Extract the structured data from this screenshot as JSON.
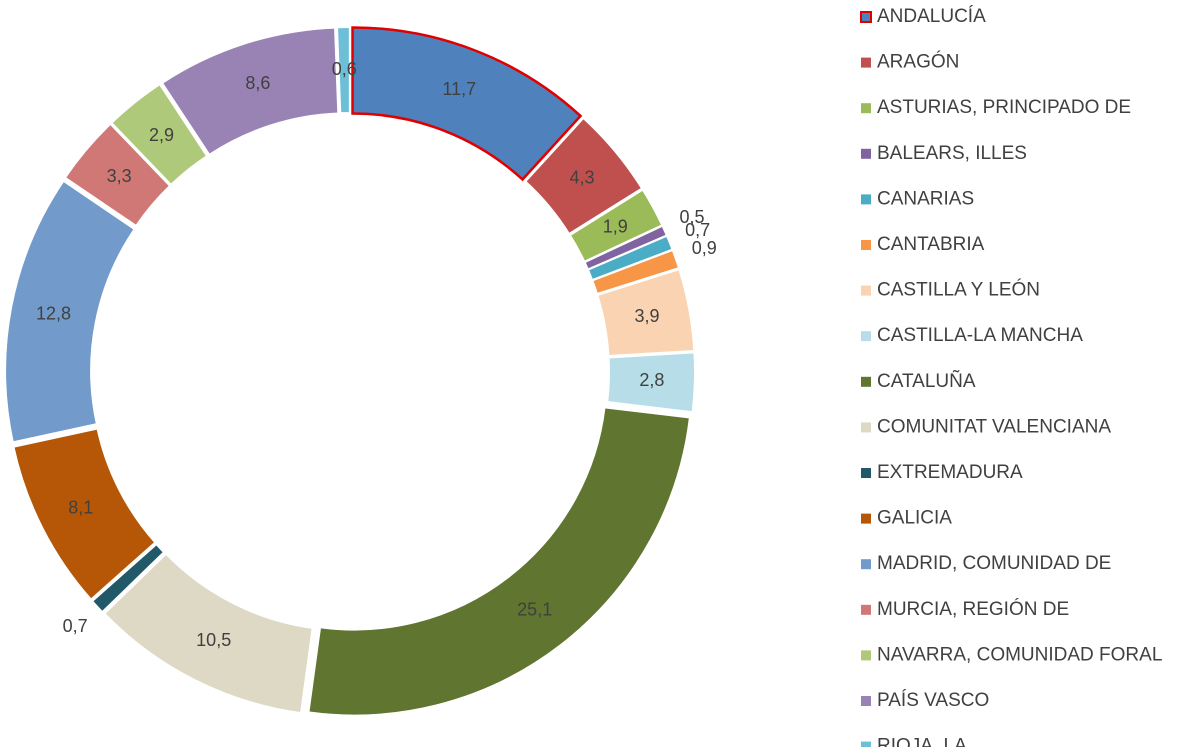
{
  "chart_data": {
    "type": "pie",
    "donut": true,
    "categories": [
      "ANDALUCÍA",
      "ARAGÓN",
      "ASTURIAS, PRINCIPADO DE",
      "BALEARS, ILLES",
      "CANARIAS",
      "CANTABRIA",
      "CASTILLA Y LEÓN",
      "CASTILLA-LA MANCHA",
      "CATALUÑA",
      "COMUNITAT VALENCIANA",
      "EXTREMADURA",
      "GALICIA",
      "MADRID, COMUNIDAD DE",
      "MURCIA, REGIÓN DE",
      "NAVARRA, COMUNIDAD FORAL",
      "PAÍS VASCO",
      "RIOJA, LA"
    ],
    "values": [
      11.7,
      4.3,
      1.9,
      0.5,
      0.7,
      0.9,
      3.9,
      2.8,
      25.1,
      10.5,
      0.7,
      8.1,
      12.8,
      3.3,
      2.9,
      8.6,
      0.6
    ],
    "value_labels": [
      "11,7",
      "4,3",
      "1,9",
      "0,5",
      "0,7",
      "0,9",
      "3,9",
      "2,8",
      "25,1",
      "10,5",
      "0,7",
      "8,1",
      "12,8",
      "3,3",
      "2,9",
      "8,6",
      "0,6"
    ],
    "colors": [
      "#4f81bd",
      "#c0504d",
      "#9bbb59",
      "#8064a2",
      "#4bacc6",
      "#f79646",
      "#fad3b3",
      "#b7dde8",
      "#5f7530",
      "#ddd9c4",
      "#215968",
      "#b65708",
      "#729aca",
      "#d07875",
      "#afc97a",
      "#9983b5",
      "#6cbfd6"
    ],
    "legend": "right"
  }
}
